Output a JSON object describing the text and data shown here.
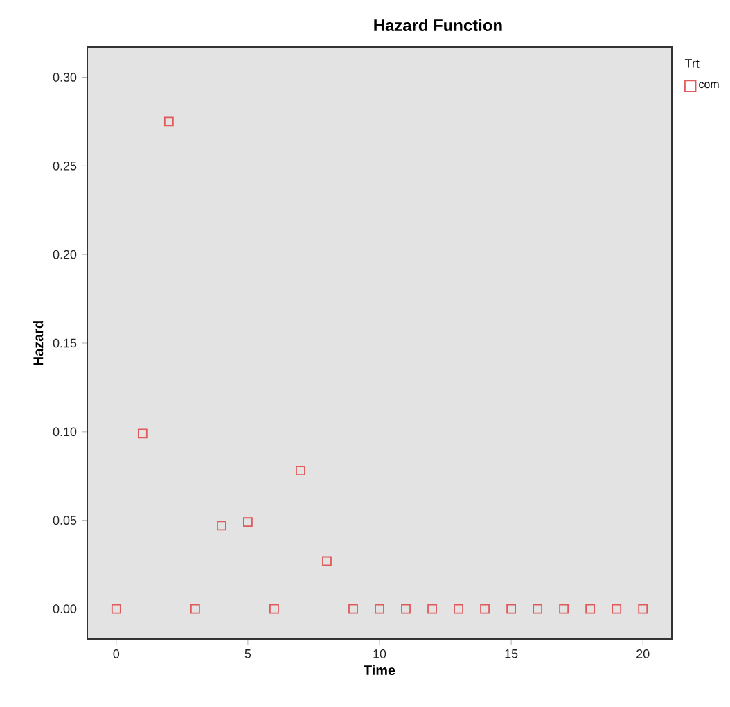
{
  "chart_data": {
    "type": "scatter",
    "title": "Hazard Function",
    "xlabel": "Time",
    "ylabel": "Hazard",
    "legend_title": "Trt",
    "x": [
      0,
      1,
      2,
      3,
      4,
      5,
      6,
      7,
      8,
      9,
      10,
      11,
      12,
      13,
      14,
      15,
      16,
      17,
      18,
      19,
      20
    ],
    "series": [
      {
        "name": "com",
        "color": "#e05a5a",
        "values": [
          0,
          0.099,
          0.275,
          0,
          0.047,
          0.049,
          0,
          0.078,
          0.027,
          0,
          0,
          0,
          0,
          0,
          0,
          0,
          0,
          0,
          0,
          0,
          0
        ]
      }
    ],
    "xlim": [
      -1.1,
      21.1
    ],
    "ylim": [
      -0.017,
      0.317
    ],
    "xticks": [
      0,
      5,
      10,
      15,
      20
    ],
    "yticks": [
      {
        "value": 0,
        "label": "0.00"
      },
      {
        "value": 0.05,
        "label": "0.05"
      },
      {
        "value": 0.1,
        "label": "0.10"
      },
      {
        "value": 0.15,
        "label": "0.15"
      },
      {
        "value": 0.2,
        "label": "0.20"
      },
      {
        "value": 0.25,
        "label": "0.25"
      },
      {
        "value": 0.3,
        "label": "0.30"
      }
    ],
    "grid": false,
    "legend": "top right",
    "marker": "square"
  }
}
